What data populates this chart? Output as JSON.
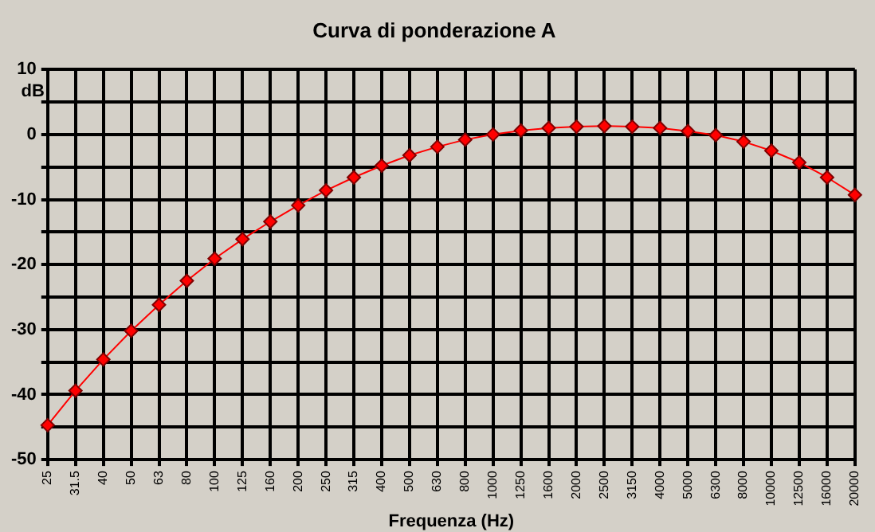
{
  "chart_data": {
    "type": "line",
    "title": "Curva di ponderazione A",
    "xlabel": "Frequenza (Hz)",
    "ylabel": "dB",
    "categories": [
      "25",
      "31.5",
      "40",
      "50",
      "63",
      "80",
      "100",
      "125",
      "160",
      "200",
      "250",
      "315",
      "400",
      "500",
      "630",
      "800",
      "1000",
      "1250",
      "1600",
      "2000",
      "2500",
      "3150",
      "4000",
      "5000",
      "6300",
      "8000",
      "10000",
      "12500",
      "16000",
      "20000"
    ],
    "series": [
      {
        "color": "#ff0000",
        "values": [
          -44.7,
          -39.4,
          -34.6,
          -30.2,
          -26.2,
          -22.5,
          -19.1,
          -16.1,
          -13.4,
          -10.9,
          -8.6,
          -6.6,
          -4.8,
          -3.2,
          -1.9,
          -0.8,
          0,
          0.6,
          1.0,
          1.2,
          1.3,
          1.2,
          1.0,
          0.5,
          -0.1,
          -1.1,
          -2.5,
          -4.3,
          -6.6,
          -9.3
        ]
      }
    ],
    "ylim": [
      -50,
      10
    ],
    "yticks": [
      -50,
      {
        "value": -45,
        "label": null
      },
      -40,
      {
        "value": -35,
        "label": null
      },
      -30,
      {
        "value": -25,
        "label": null
      },
      -20,
      {
        "value": -15,
        "label": null
      },
      -10,
      {
        "value": -5,
        "label": null
      },
      0,
      {
        "value": 5,
        "label": null
      },
      10
    ],
    "grid": true,
    "legend": false,
    "marker": "diamond",
    "line_style": "solid"
  }
}
